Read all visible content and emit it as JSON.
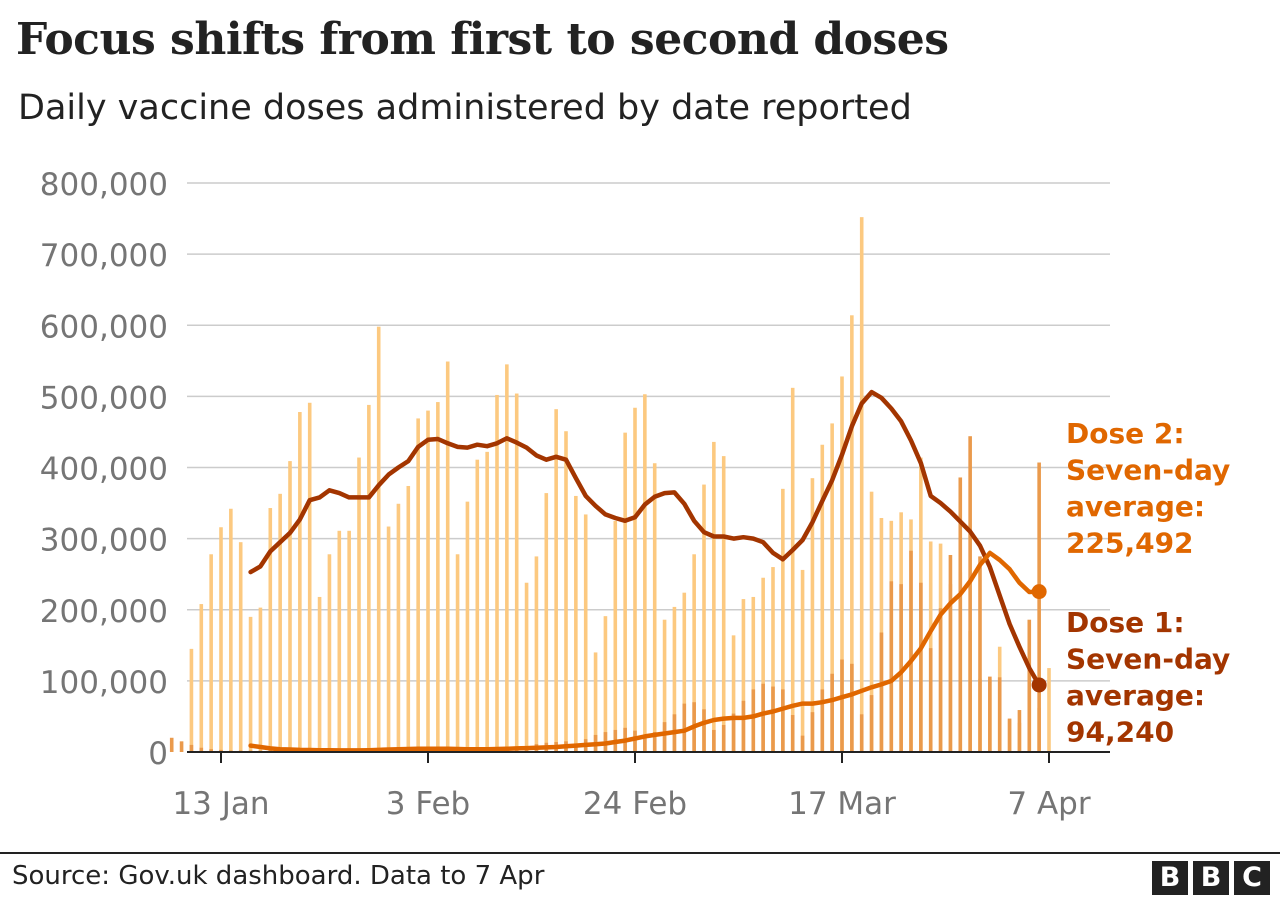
{
  "title": "Focus shifts from first to second doses",
  "subtitle": "Daily vaccine doses administered by date reported",
  "source": "Source: Gov.uk dashboard. Data to 7 Apr",
  "logo": {
    "letters": [
      "B",
      "B",
      "C"
    ]
  },
  "colors": {
    "background": "#ffffff",
    "text": "#222222",
    "axis_text": "#757575",
    "grid": "#cccccc",
    "dose1_bar": "#fcc980",
    "dose2_bar": "#ea9a4c",
    "dose1_line": "#a33500",
    "dose2_line": "#e06700"
  },
  "chart_data": {
    "type": "bar",
    "x_start": "2021-01-10",
    "x_end": "2021-04-07",
    "ylim": [
      0,
      800000
    ],
    "y_ticks": [
      0,
      100000,
      200000,
      300000,
      400000,
      500000,
      600000,
      700000,
      800000
    ],
    "y_tick_labels": [
      "0",
      "100,000",
      "200,000",
      "300,000",
      "400,000",
      "500,000",
      "600,000",
      "700,000",
      "800,000"
    ],
    "x_ticks": [
      "2021-01-13",
      "2021-02-03",
      "2021-02-24",
      "2021-03-17",
      "2021-04-07"
    ],
    "x_tick_labels": [
      "13 Jan",
      "3 Feb",
      "24 Feb",
      "17 Mar",
      "7 Apr"
    ],
    "grid": true,
    "series": [
      {
        "role": "dose1_daily",
        "values": [
          145000,
          208000,
          278000,
          316000,
          342000,
          295000,
          190000,
          203000,
          343000,
          363000,
          409000,
          478000,
          491000,
          218000,
          278000,
          311000,
          311000,
          414000,
          488000,
          598000,
          317000,
          349000,
          374000,
          469000,
          480000,
          492000,
          549000,
          278000,
          352000,
          411000,
          422000,
          502000,
          545000,
          504000,
          238000,
          275000,
          364000,
          482000,
          451000,
          360000,
          334000,
          140000,
          191000,
          325000,
          449000,
          484000,
          503000,
          406000,
          186000,
          204000,
          224000,
          278000,
          376000,
          436000,
          416000,
          164000,
          215000,
          218000,
          245000,
          260000,
          370000,
          512000,
          256000,
          385000,
          432000,
          462000,
          528000,
          614000,
          752000,
          366000,
          329000,
          325000,
          337000,
          327000,
          414000,
          296000,
          293000,
          236000,
          253000,
          170000,
          103000,
          102000,
          148000,
          46000,
          41000,
          86000,
          62000,
          118000
        ],
        "day_offset": 0
      },
      {
        "role": "dose2_daily",
        "values": [
          20000,
          15000,
          10000,
          6000,
          4000,
          3000,
          2000,
          2000,
          2000,
          2000,
          2000,
          2000,
          2000,
          1000,
          2000,
          2000,
          2000,
          3000,
          3000,
          4000,
          3000,
          3000,
          3000,
          4000,
          4000,
          4000,
          4000,
          3000,
          3000,
          3000,
          3000,
          4000,
          4000,
          4000,
          3000,
          6000,
          8000,
          11000,
          13000,
          14000,
          15000,
          12000,
          18000,
          24000,
          28000,
          31000,
          34000,
          30000,
          22000,
          28000,
          42000,
          53000,
          68000,
          70000,
          60000,
          31000,
          38000,
          54000,
          72000,
          88000,
          96000,
          92000,
          88000,
          52000,
          23000,
          56000,
          88000,
          110000,
          130000,
          124000,
          53000,
          80000,
          168000,
          240000,
          236000,
          283000,
          238000,
          146000,
          202000,
          277000,
          386000,
          444000,
          275000,
          106000,
          105000,
          47000,
          59000,
          186000,
          407000
        ],
        "day_offset": -2
      },
      {
        "name": "Dose 1: Seven-day average",
        "role": "dose1_average",
        "day_offset": 6,
        "values": [
          253000,
          261000,
          282000,
          295000,
          308000,
          327000,
          354000,
          358000,
          368000,
          364000,
          358000,
          358000,
          358000,
          375000,
          390000,
          400000,
          409000,
          429000,
          439000,
          440000,
          434000,
          429000,
          428000,
          432000,
          430000,
          434000,
          441000,
          435000,
          428000,
          417000,
          411000,
          415000,
          411000,
          385000,
          360000,
          346000,
          334000,
          329000,
          325000,
          330000,
          348000,
          359000,
          364000,
          365000,
          349000,
          325000,
          309000,
          303000,
          303000,
          300000,
          302000,
          300000,
          295000,
          280000,
          271000,
          284000,
          298000,
          323000,
          353000,
          382000,
          418000,
          458000,
          490000,
          506000,
          498000,
          483000,
          465000,
          438000,
          406000,
          360000,
          350000,
          338000,
          324000,
          310000,
          290000,
          260000,
          220000,
          180000,
          148000,
          118000,
          94240
        ]
      },
      {
        "name": "Dose 2: Seven-day average",
        "role": "dose2_average",
        "day_offset": 6,
        "values": [
          9000,
          7000,
          5000,
          4000,
          3500,
          3000,
          2800,
          2600,
          2400,
          2200,
          2200,
          2300,
          2500,
          3000,
          3500,
          4000,
          4200,
          4500,
          4500,
          4500,
          4500,
          4200,
          4000,
          4000,
          4000,
          4200,
          4500,
          5000,
          5500,
          6000,
          6500,
          7000,
          8000,
          9000,
          10000,
          11000,
          12000,
          14000,
          16000,
          19000,
          22000,
          24000,
          26000,
          28000,
          30000,
          36000,
          41000,
          45000,
          47000,
          48000,
          48000,
          50000,
          54000,
          57000,
          61000,
          65000,
          68000,
          68000,
          70000,
          73000,
          77000,
          81000,
          86000,
          91000,
          95000,
          100000,
          112000,
          128000,
          146000,
          170000,
          193000,
          209000,
          222000,
          240000,
          263000,
          280000,
          270000,
          257000,
          238000,
          225000,
          225492
        ]
      }
    ],
    "annotations": [
      {
        "role": "dose2_label",
        "lines": [
          "Dose 2:",
          "Seven-day",
          "average:",
          "225,492"
        ]
      },
      {
        "role": "dose1_label",
        "lines": [
          "Dose 1:",
          "Seven-day",
          "average:",
          "94,240"
        ]
      }
    ]
  }
}
